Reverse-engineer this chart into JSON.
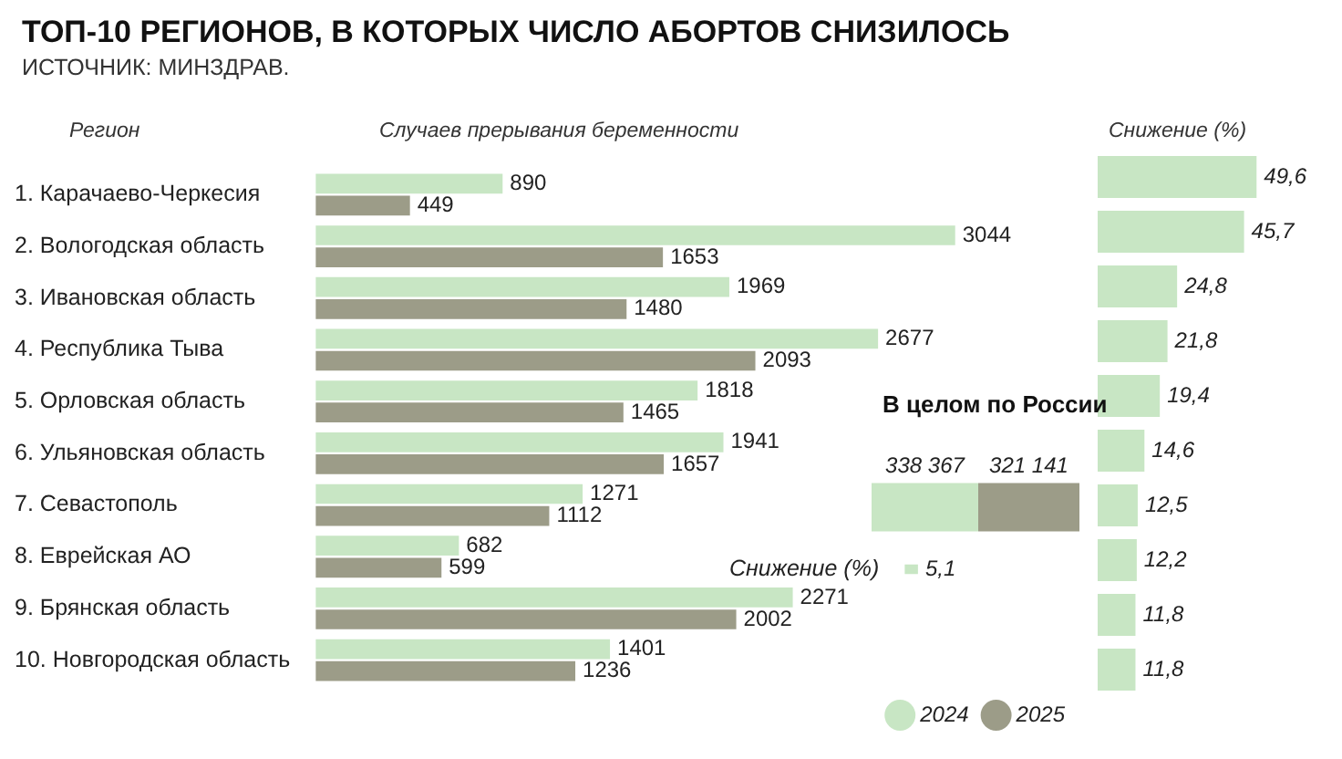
{
  "chart_data": [
    {
      "type": "bar",
      "orientation": "horizontal",
      "title": "ТОП-10 РЕГИОНОВ, В КОТОРЫХ ЧИСЛО АБОРТОВ СНИЗИЛОСЬ",
      "subtitle": "ИСТОЧНИК: МИНЗДРАВ.",
      "ylabel": "Регион",
      "xlabel": "Случаев прерывания беременности",
      "categories": [
        "1. Карачаево-Черкесия",
        "2. Вологодская область",
        "3. Ивановская область",
        "4. Республика Тыва",
        "5. Орловская область",
        "6. Ульяновская область",
        "7. Севастополь",
        "8. Еврейская АО",
        "9. Брянская область",
        "10. Новгородская область"
      ],
      "series": [
        {
          "name": "2024",
          "color": "#c8e6c4",
          "values": [
            890,
            3044,
            1969,
            2677,
            1818,
            1941,
            1271,
            682,
            2271,
            1401
          ]
        },
        {
          "name": "2025",
          "color": "#9c9c88",
          "values": [
            449,
            1653,
            1480,
            2093,
            1465,
            1657,
            1112,
            599,
            2002,
            1236
          ]
        }
      ],
      "data_labels": true,
      "legend": "bottom right"
    },
    {
      "type": "bar",
      "orientation": "horizontal",
      "xlabel": "Снижение (%)",
      "categories": [
        null,
        null,
        null,
        null,
        null,
        null,
        null,
        null,
        null,
        null
      ],
      "color": "#c8e6c4",
      "values": [
        49.6,
        45.7,
        24.8,
        21.8,
        19.4,
        14.6,
        12.5,
        12.2,
        11.8,
        11.8
      ],
      "value_labels": [
        "49,6",
        "45,7",
        "24,8",
        "21,8",
        "19,4",
        "14,6",
        "12,5",
        "12,2",
        "11,8",
        "11,8"
      ]
    },
    {
      "type": "bar",
      "orientation": "horizontal",
      "stacked": true,
      "title": "В целом по России",
      "categories": [
        null
      ],
      "series": [
        {
          "color": "#c8e6c4",
          "values": [
            338367
          ],
          "value_labels": [
            "338 367"
          ]
        },
        {
          "color": "#9c9c88",
          "values": [
            321141
          ],
          "value_labels": [
            "321 141"
          ]
        }
      ]
    },
    {
      "type": "bar",
      "orientation": "horizontal",
      "categories": [
        "Снижение (%)"
      ],
      "color": "#c8e6c4",
      "values": [
        5.1
      ],
      "value_labels": [
        "5,1"
      ]
    }
  ]
}
